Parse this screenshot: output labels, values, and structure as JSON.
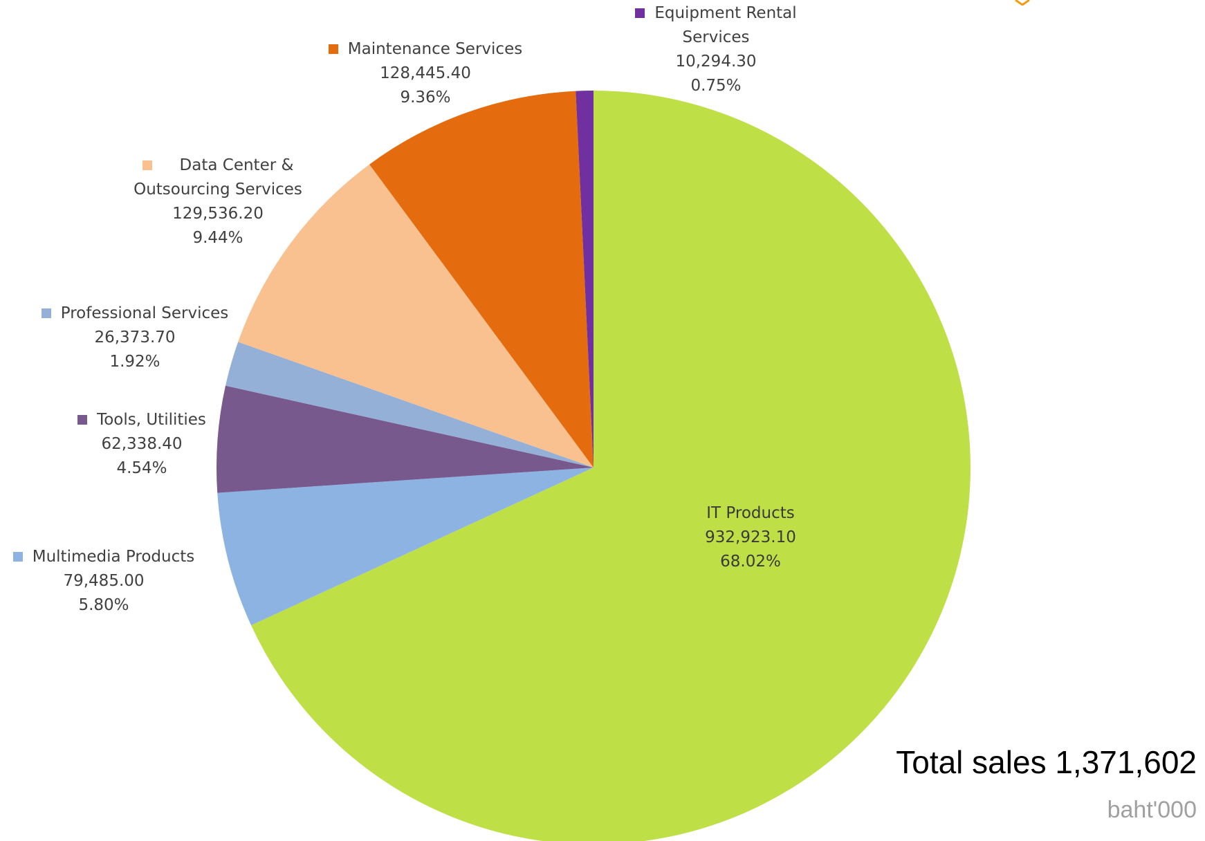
{
  "chart_data": {
    "type": "pie",
    "start_angle_deg": 0,
    "direction": "clockwise",
    "slices": [
      {
        "name": "IT Products",
        "value": "932,923.10",
        "percent": "68.02%",
        "amount": 932923.1,
        "color": "#bfdf46"
      },
      {
        "name": "Multimedia Products",
        "value": "79,485.00",
        "percent": "5.80%",
        "amount": 79485.0,
        "color": "#8db3e2"
      },
      {
        "name": "Tools, Utilities",
        "value": "62,338.40",
        "percent": "4.54%",
        "amount": 62338.4,
        "color": "#77598e"
      },
      {
        "name": "Professional Services",
        "value": "26,373.70",
        "percent": "1.92%",
        "amount": 26373.7,
        "color": "#95b0d6"
      },
      {
        "name": "Data Center & Outsourcing Services",
        "value": "129,536.20",
        "percent": "9.44%",
        "amount": 129536.2,
        "color": "#f9c090"
      },
      {
        "name": "Maintenance Services",
        "value": "128,445.40",
        "percent": "9.36%",
        "amount": 128445.4,
        "color": "#e46c0f"
      },
      {
        "name": "Equipment Rental Services",
        "value": "10,294.30",
        "percent": "0.75%",
        "amount": 10294.3,
        "color": "#7030a0"
      }
    ],
    "legend": "labels beside slices",
    "annotations": {
      "total": "Total sales 1,371,602",
      "unit": "baht'000"
    }
  },
  "labels": {
    "it": {
      "name": "IT Products",
      "value": "932,923.10",
      "percent": "68.02%"
    },
    "multimedia": {
      "name": "Multimedia Products",
      "value": "79,485.00",
      "percent": "5.80%"
    },
    "tools": {
      "name": "Tools, Utilities",
      "value": "62,338.40",
      "percent": "4.54%"
    },
    "professional": {
      "name": "Professional Services",
      "value": "26,373.70",
      "percent": "1.92%"
    },
    "datacenter": {
      "name_line1": "Data Center &",
      "name_line2": "Outsourcing Services",
      "value": "129,536.20",
      "percent": "9.44%"
    },
    "maintenance": {
      "name": "Maintenance Services",
      "value": "128,445.40",
      "percent": "9.36%"
    },
    "rental": {
      "name_line1": "Equipment Rental",
      "name_line2": "Services",
      "value": "10,294.30",
      "percent": "0.75%"
    }
  },
  "accent_color": "#f39c12"
}
